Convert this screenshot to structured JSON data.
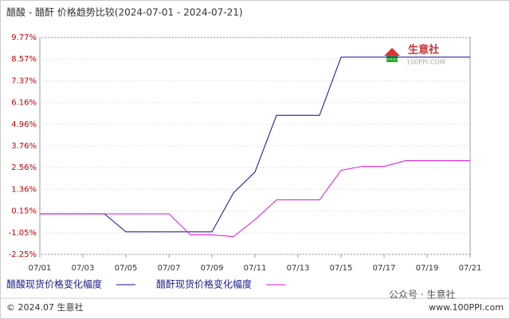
{
  "chart_data": {
    "type": "line",
    "title": "醋酸 - 醋酐 价格趋势比较(2024-07-01 - 2024-07-21)",
    "categories": [
      "07/01",
      null,
      "07/03",
      null,
      "07/05",
      null,
      "07/07",
      null,
      "07/09",
      null,
      "07/11",
      null,
      "07/13",
      null,
      "07/15",
      null,
      "07/17",
      null,
      "07/19",
      null,
      "07/21"
    ],
    "series": [
      {
        "name": "醋酸现货价格变化幅度",
        "color": "#1010a0",
        "values": [
          0,
          0,
          0,
          0,
          -1.0,
          -1.0,
          -1.0,
          -1.0,
          -1.0,
          1.16,
          2.32,
          5.46,
          5.46,
          5.46,
          8.68,
          8.68,
          8.68,
          8.68,
          8.68,
          8.68,
          8.68
        ]
      },
      {
        "name": "醋酐现货价格变化幅度",
        "color": "#e010e0",
        "values": [
          0,
          0,
          0,
          0,
          0,
          0,
          0,
          -1.17,
          -1.17,
          -1.26,
          -0.33,
          0.77,
          0.77,
          0.77,
          2.41,
          2.63,
          2.63,
          2.94,
          2.94,
          2.94,
          2.94
        ]
      }
    ],
    "ylim": [
      -2.25,
      9.77
    ],
    "yticks": [
      {
        "value": 9.77,
        "label": "9.77%"
      },
      {
        "value": 8.57,
        "label": "8.57%"
      },
      {
        "value": 7.37,
        "label": "7.37%"
      },
      {
        "value": 6.16,
        "label": "6.16%"
      },
      {
        "value": 4.96,
        "label": "4.96%"
      },
      {
        "value": 3.76,
        "label": "3.76%"
      },
      {
        "value": 2.56,
        "label": "2.56%"
      },
      {
        "value": 1.36,
        "label": "1.36%"
      },
      {
        "value": 0.15,
        "label": "0.15%"
      },
      {
        "value": -1.05,
        "label": "-1.05%"
      },
      {
        "value": -2.25,
        "label": "-2.25%"
      }
    ],
    "grid": true,
    "logo": "生意社",
    "logo_url": "100PPI.COM",
    "footer_left": "© 2024.07 生意社",
    "footer_right": "www.100PPI.com",
    "watermark": "公众号 · 生意社"
  }
}
